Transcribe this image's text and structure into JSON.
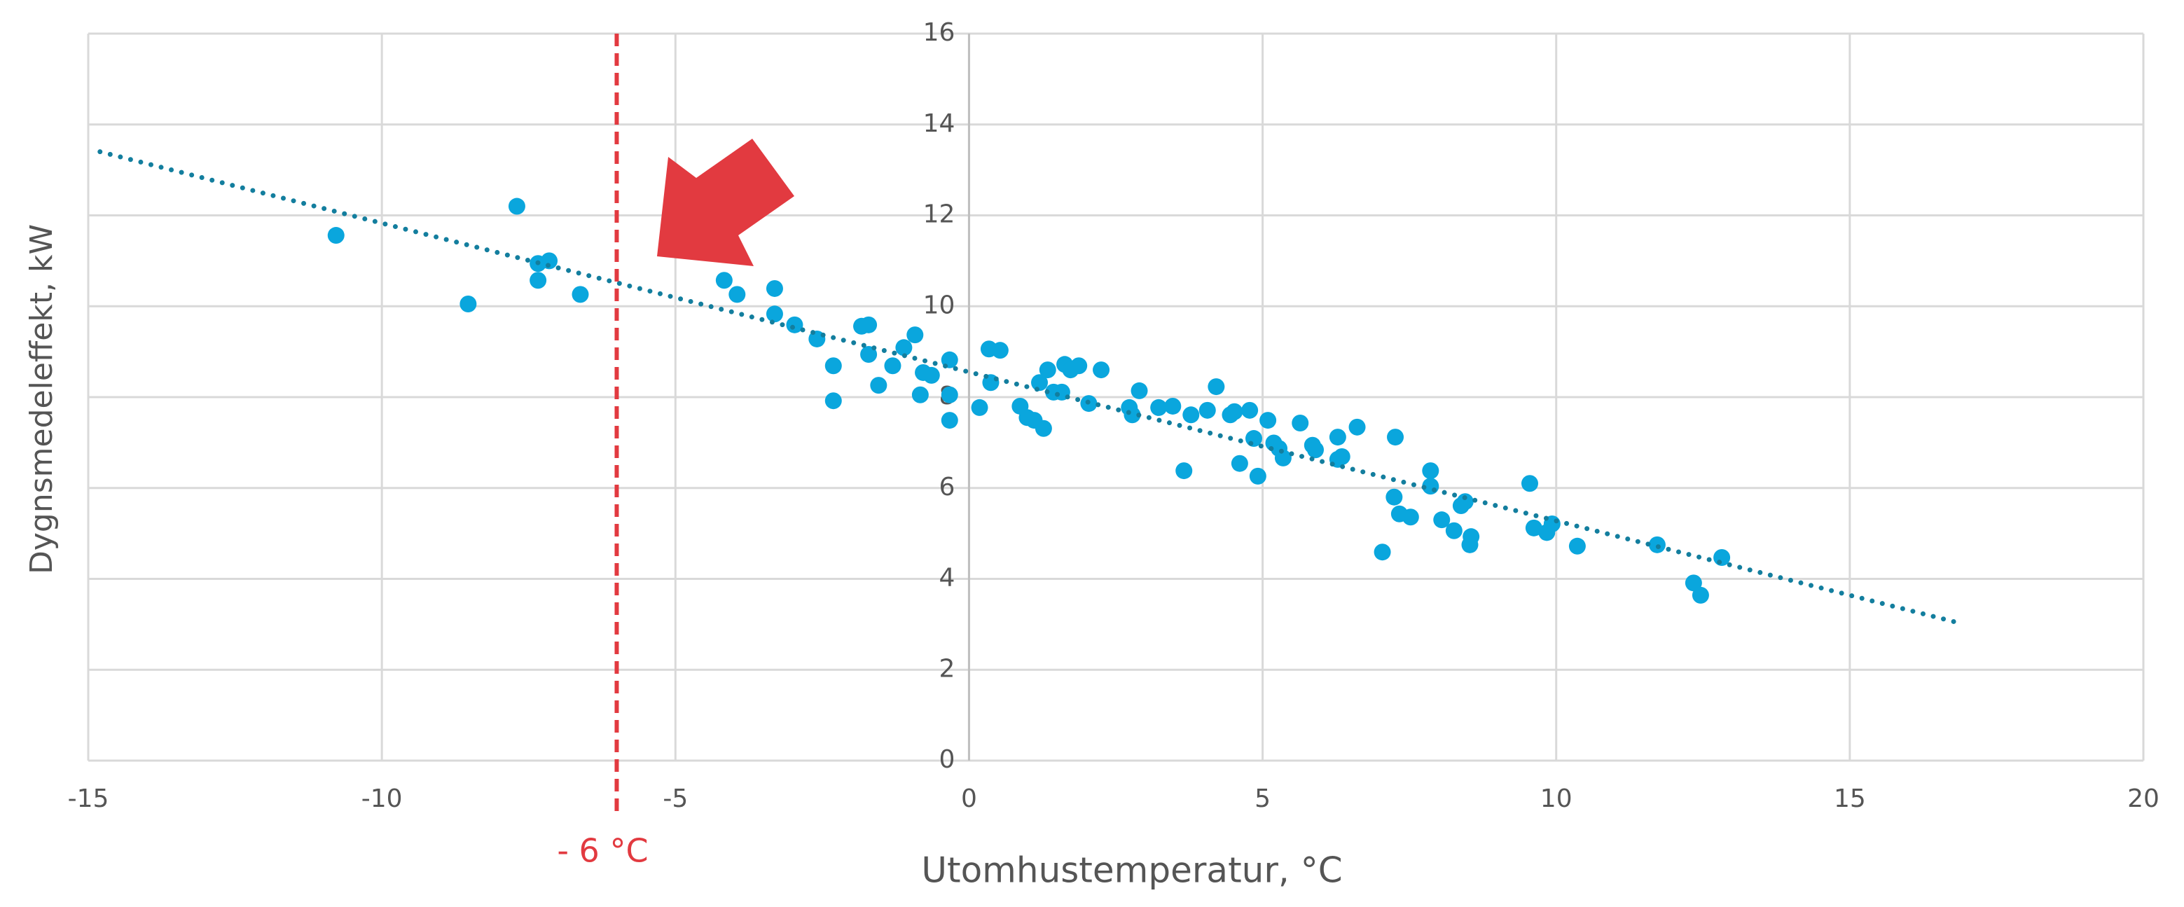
{
  "chart_data": {
    "type": "scatter",
    "x_label": "Utomhustemperatur, °C",
    "y_label": "Dygnsmedeleffekt, kW",
    "x": [
      -10.78,
      -7.7,
      -8.53,
      -7.34,
      -7.34,
      -7.15,
      -6.62,
      -4.17,
      -3.95,
      -3.31,
      -3.31,
      -2.97,
      -2.59,
      -2.31,
      -2.31,
      -1.83,
      -1.71,
      -1.71,
      -1.54,
      -1.3,
      -1.11,
      -0.92,
      -0.83,
      -0.78,
      -0.64,
      -0.33,
      -0.33,
      -0.33,
      0.18,
      0.34,
      0.53,
      0.37,
      0.87,
      0.99,
      1.11,
      1.2,
      1.27,
      1.34,
      1.44,
      1.58,
      1.63,
      1.73,
      1.87,
      2.04,
      2.25,
      2.73,
      2.78,
      2.9,
      3.23,
      3.47,
      3.66,
      3.78,
      4.06,
      4.21,
      4.45,
      4.52,
      4.61,
      4.78,
      4.85,
      4.92,
      5.09,
      5.19,
      5.28,
      5.35,
      5.64,
      5.85,
      5.9,
      6.28,
      6.28,
      6.35,
      6.61,
      7.04,
      7.26,
      7.24,
      7.33,
      7.52,
      7.86,
      7.86,
      8.05,
      8.26,
      8.38,
      8.45,
      8.55,
      8.53,
      9.55,
      9.62,
      9.84,
      9.93,
      10.36,
      11.72,
      12.34,
      12.46,
      12.82
    ],
    "values": [
      11.56,
      12.2,
      10.05,
      10.57,
      10.94,
      11.0,
      10.26,
      10.57,
      10.26,
      10.39,
      9.83,
      9.59,
      9.28,
      8.69,
      7.92,
      9.56,
      9.59,
      8.94,
      8.26,
      8.69,
      9.09,
      9.37,
      8.05,
      8.54,
      8.48,
      8.82,
      8.05,
      7.49,
      7.77,
      9.06,
      9.03,
      8.32,
      7.8,
      7.55,
      7.49,
      8.32,
      7.31,
      8.6,
      8.11,
      8.11,
      8.72,
      8.6,
      8.69,
      7.86,
      8.6,
      7.77,
      7.61,
      8.14,
      7.77,
      7.8,
      6.38,
      7.61,
      7.71,
      8.23,
      7.61,
      7.68,
      6.54,
      7.71,
      7.09,
      6.26,
      7.49,
      6.99,
      6.87,
      6.66,
      7.43,
      6.94,
      6.84,
      7.12,
      6.63,
      6.69,
      7.34,
      4.59,
      7.12,
      5.8,
      5.43,
      5.36,
      6.38,
      6.04,
      5.3,
      5.06,
      5.61,
      5.7,
      4.93,
      4.75,
      6.1,
      5.12,
      5.02,
      5.21,
      4.72,
      4.75,
      3.91,
      3.64,
      4.47
    ],
    "color": "#0aa6dd",
    "trendline": {
      "x": [
        -14.8,
        16.8
      ],
      "values": [
        13.4,
        3.05
      ],
      "color": "#137e9e"
    },
    "reference_line": {
      "x": -6,
      "label": "- 6 °C",
      "color": "#e23a40"
    },
    "xlim": [
      -15,
      20
    ],
    "xticks": [
      -15,
      -10,
      -5,
      0,
      5,
      10,
      15,
      20
    ],
    "ylim": [
      0,
      16
    ],
    "yticks": [
      0,
      2,
      4,
      6,
      8,
      10,
      12,
      14,
      16
    ],
    "grid": true
  }
}
